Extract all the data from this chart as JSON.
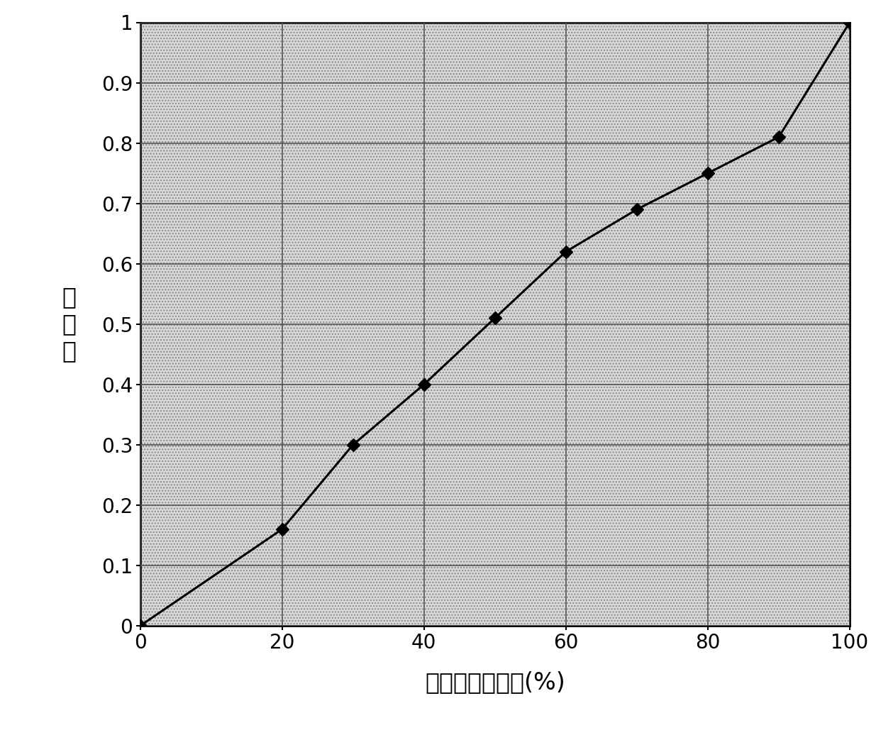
{
  "x": [
    0,
    20,
    30,
    40,
    50,
    60,
    70,
    80,
    90,
    100
  ],
  "y": [
    0,
    0.16,
    0.3,
    0.4,
    0.51,
    0.62,
    0.69,
    0.75,
    0.81,
    1.0
  ],
  "xlim": [
    0,
    100
  ],
  "ylim": [
    0,
    1.0
  ],
  "xticks": [
    0,
    20,
    40,
    60,
    80,
    100
  ],
  "yticks": [
    0,
    0.1,
    0.2,
    0.3,
    0.4,
    0.5,
    0.6,
    0.7,
    0.8,
    0.9,
    1
  ],
  "ytick_labels": [
    "0",
    "0.1",
    "0.2",
    "0.3",
    "0.4",
    "0.5",
    "0.6",
    "0.7",
    "0.8",
    "0.9",
    "1"
  ],
  "xlabel": "罟基磷灰石含量(%)",
  "ylabel_line1": "峰",
  "ylabel_line2": "强",
  "ylabel_line3": "比",
  "line_color": "#000000",
  "marker": "D",
  "marker_color": "#000000",
  "marker_size": 9,
  "line_width": 2.2,
  "grid_color": "#555555",
  "xlabel_fontsize": 24,
  "ylabel_fontsize": 24,
  "tick_fontsize": 20,
  "fig_width": 12.35,
  "fig_height": 10.5,
  "dpi": 100
}
